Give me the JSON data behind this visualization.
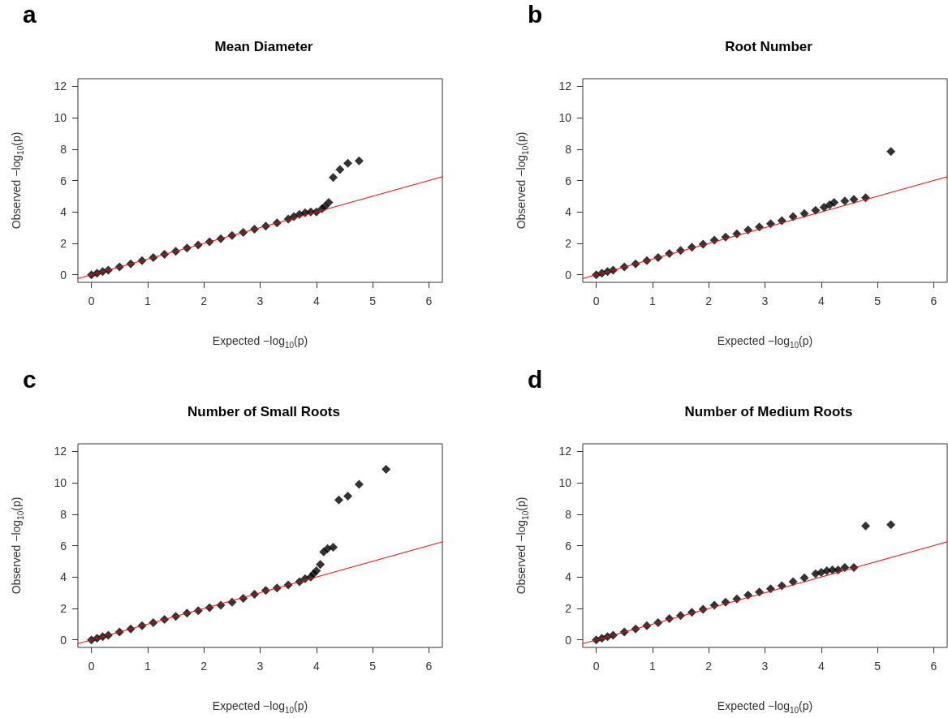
{
  "chart_data": [
    {
      "type": "scatter",
      "title": "Mean Diameter",
      "annotations": [
        "a"
      ],
      "xlabel": "Expected −log$_{10}$(p)",
      "ylabel": "Observed −log$_{10}$(p)",
      "xlim": [
        -0.24,
        6.24
      ],
      "ylim": [
        -0.48,
        12.48
      ],
      "xticks": [
        0,
        1,
        2,
        3,
        4,
        5,
        6
      ],
      "yticks": [
        0,
        2,
        4,
        6,
        8,
        10,
        12
      ],
      "series": [
        {
          "type": "scatter",
          "marker": "diamond",
          "color": "#000000",
          "x": [
            0,
            0.1,
            0.2,
            0.3,
            0.5,
            0.7,
            0.9,
            1.1,
            1.3,
            1.5,
            1.7,
            1.9,
            2.1,
            2.3,
            2.5,
            2.7,
            2.9,
            3.1,
            3.3,
            3.5,
            3.6,
            3.7,
            3.8,
            3.9,
            4.0,
            4.1,
            4.15,
            4.22,
            4.3,
            4.42,
            4.56,
            4.76
          ],
          "values": [
            0,
            0.1,
            0.2,
            0.3,
            0.5,
            0.7,
            0.9,
            1.1,
            1.3,
            1.5,
            1.7,
            1.9,
            2.1,
            2.3,
            2.5,
            2.7,
            2.9,
            3.1,
            3.3,
            3.55,
            3.7,
            3.85,
            3.95,
            4.0,
            4.0,
            4.2,
            4.35,
            4.6,
            6.2,
            6.7,
            7.1,
            7.25
          ]
        },
        {
          "type": "line",
          "marker": "none",
          "line_style": "solid",
          "color": "#ff0000",
          "x": [
            -0.24,
            6.24
          ],
          "values": [
            -0.24,
            6.24
          ]
        }
      ]
    },
    {
      "type": "scatter",
      "title": "Root Number",
      "annotations": [
        "b"
      ],
      "xlabel": "Expected −log$_{10}$(p)",
      "ylabel": "Observed −log$_{10}$(p)",
      "xlim": [
        -0.24,
        6.24
      ],
      "ylim": [
        -0.48,
        12.48
      ],
      "xticks": [
        0,
        1,
        2,
        3,
        4,
        5,
        6
      ],
      "yticks": [
        0,
        2,
        4,
        6,
        8,
        10,
        12
      ],
      "series": [
        {
          "type": "scatter",
          "marker": "diamond",
          "color": "#000000",
          "x": [
            0,
            0.1,
            0.2,
            0.3,
            0.5,
            0.7,
            0.9,
            1.1,
            1.3,
            1.5,
            1.7,
            1.9,
            2.1,
            2.3,
            2.5,
            2.7,
            2.9,
            3.1,
            3.3,
            3.5,
            3.7,
            3.9,
            4.05,
            4.15,
            4.23,
            4.42,
            4.58,
            4.79,
            5.24
          ],
          "values": [
            0,
            0.1,
            0.2,
            0.3,
            0.5,
            0.7,
            0.9,
            1.1,
            1.35,
            1.55,
            1.75,
            1.95,
            2.2,
            2.4,
            2.6,
            2.85,
            3.05,
            3.25,
            3.45,
            3.7,
            3.9,
            4.1,
            4.3,
            4.45,
            4.6,
            4.7,
            4.8,
            4.9,
            7.85
          ]
        },
        {
          "type": "line",
          "marker": "none",
          "line_style": "solid",
          "color": "#ff0000",
          "x": [
            -0.24,
            6.24
          ],
          "values": [
            -0.24,
            6.24
          ]
        }
      ]
    },
    {
      "type": "scatter",
      "title": "Number of Small Roots",
      "annotations": [
        "c"
      ],
      "xlabel": "Expected −log$_{10}$(p)",
      "ylabel": "Observed −log$_{10}$(p)",
      "xlim": [
        -0.24,
        6.24
      ],
      "ylim": [
        -0.48,
        12.48
      ],
      "xticks": [
        0,
        1,
        2,
        3,
        4,
        5,
        6
      ],
      "yticks": [
        0,
        2,
        4,
        6,
        8,
        10,
        12
      ],
      "series": [
        {
          "type": "scatter",
          "marker": "diamond",
          "color": "#000000",
          "x": [
            0,
            0.1,
            0.2,
            0.3,
            0.5,
            0.7,
            0.9,
            1.1,
            1.3,
            1.5,
            1.7,
            1.9,
            2.1,
            2.3,
            2.5,
            2.7,
            2.9,
            3.1,
            3.3,
            3.5,
            3.7,
            3.8,
            3.9,
            3.95,
            4.0,
            4.07,
            4.13,
            4.2,
            4.3,
            4.4,
            4.56,
            4.76,
            5.24
          ],
          "values": [
            0,
            0.1,
            0.2,
            0.3,
            0.5,
            0.7,
            0.9,
            1.1,
            1.3,
            1.5,
            1.7,
            1.85,
            2.05,
            2.2,
            2.4,
            2.65,
            2.9,
            3.15,
            3.3,
            3.5,
            3.7,
            3.9,
            4.0,
            4.2,
            4.4,
            4.8,
            5.6,
            5.8,
            5.9,
            8.9,
            9.15,
            9.9,
            10.85
          ]
        },
        {
          "type": "line",
          "marker": "none",
          "line_style": "solid",
          "color": "#ff0000",
          "x": [
            -0.24,
            6.24
          ],
          "values": [
            -0.24,
            6.24
          ]
        }
      ]
    },
    {
      "type": "scatter",
      "title": "Number of Medium Roots",
      "annotations": [
        "d"
      ],
      "xlabel": "Expected −log$_{10}$(p)",
      "ylabel": "Observed −log$_{10}$(p)",
      "xlim": [
        -0.24,
        6.24
      ],
      "ylim": [
        -0.48,
        12.48
      ],
      "xticks": [
        0,
        1,
        2,
        3,
        4,
        5,
        6
      ],
      "yticks": [
        0,
        2,
        4,
        6,
        8,
        10,
        12
      ],
      "series": [
        {
          "type": "scatter",
          "marker": "diamond",
          "color": "#000000",
          "x": [
            0,
            0.1,
            0.2,
            0.3,
            0.5,
            0.7,
            0.9,
            1.1,
            1.3,
            1.5,
            1.7,
            1.9,
            2.1,
            2.3,
            2.5,
            2.7,
            2.9,
            3.1,
            3.3,
            3.5,
            3.7,
            3.9,
            4.0,
            4.1,
            4.2,
            4.3,
            4.42,
            4.58,
            4.79,
            5.24
          ],
          "values": [
            0,
            0.1,
            0.2,
            0.3,
            0.5,
            0.7,
            0.9,
            1.1,
            1.35,
            1.55,
            1.75,
            1.95,
            2.2,
            2.4,
            2.6,
            2.85,
            3.05,
            3.25,
            3.45,
            3.7,
            3.95,
            4.2,
            4.3,
            4.4,
            4.45,
            4.45,
            4.6,
            4.6,
            7.25,
            7.33
          ]
        },
        {
          "type": "line",
          "marker": "none",
          "line_style": "solid",
          "color": "#ff0000",
          "x": [
            -0.24,
            6.24
          ],
          "values": [
            -0.24,
            6.24
          ]
        }
      ]
    }
  ]
}
